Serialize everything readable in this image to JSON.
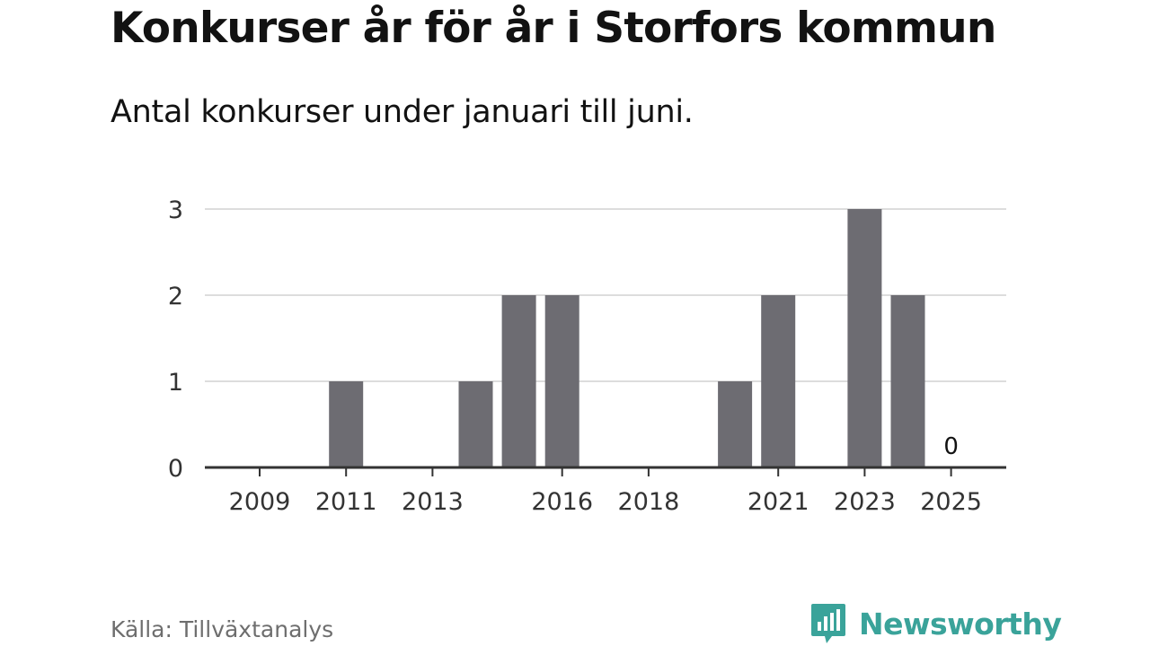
{
  "title": "Konkurser år för år i Storfors kommun",
  "subtitle": "Antal konkurser under januari till juni.",
  "source": "Källa: Tillväxtanalys",
  "brand": {
    "name": "Newsworthy",
    "icon": "newsworthy-logo-icon",
    "color": "#3aa39a"
  },
  "chart_data": {
    "type": "bar",
    "title": "Konkurser år för år i Storfors kommun",
    "subtitle": "Antal konkurser under januari till juni.",
    "categories": [
      "2009",
      "2010",
      "2011",
      "2012",
      "2013",
      "2014",
      "2015",
      "2016",
      "2017",
      "2018",
      "2019",
      "2020",
      "2021",
      "2022",
      "2023",
      "2024",
      "2025"
    ],
    "values": [
      0,
      0,
      1,
      0,
      0,
      1,
      2,
      2,
      0,
      0,
      0,
      1,
      2,
      0,
      3,
      2,
      0
    ],
    "x_tick_labels": [
      "2009",
      "2011",
      "2013",
      "2016",
      "2018",
      "2021",
      "2023",
      "2025"
    ],
    "y_ticks": [
      "0",
      "1",
      "2",
      "3"
    ],
    "ylim": [
      0,
      3
    ],
    "data_labels": [
      {
        "category": "2025",
        "text": "0"
      }
    ],
    "xlabel": "",
    "ylabel": "",
    "grid": true,
    "legend": "none",
    "bar_color": "#6d6c72",
    "grid_color": "#dddddd",
    "axis_color": "#333333"
  }
}
